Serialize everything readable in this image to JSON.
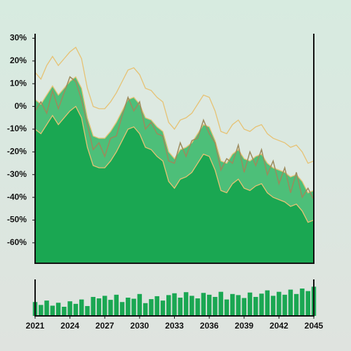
{
  "chart_data": [
    {
      "type": "area_band",
      "x": [
        2021,
        2021.5,
        2022,
        2022.5,
        2023,
        2023.5,
        2024,
        2024.5,
        2025,
        2025.5,
        2026,
        2026.5,
        2027,
        2027.5,
        2028,
        2028.5,
        2029,
        2029.5,
        2030,
        2030.5,
        2031,
        2031.5,
        2032,
        2032.5,
        2033,
        2033.5,
        2034,
        2034.5,
        2035,
        2035.5,
        2036,
        2036.5,
        2037,
        2037.5,
        2038,
        2038.5,
        2039,
        2039.5,
        2040,
        2040.5,
        2041,
        2041.5,
        2042,
        2042.5,
        2043,
        2043.5,
        2044,
        2044.5,
        2045
      ],
      "xlim": [
        2021,
        2045
      ],
      "ylim": [
        -69,
        32
      ],
      "yticks": [
        {
          "value": 30,
          "label": "30%"
        },
        {
          "value": 20,
          "label": "20%"
        },
        {
          "value": 10,
          "label": "10%"
        },
        {
          "value": 0,
          "label": "0%"
        },
        {
          "value": -10,
          "label": "-10%"
        },
        {
          "value": -20,
          "label": "-20%"
        },
        {
          "value": -30,
          "label": "-30%"
        },
        {
          "value": -40,
          "label": "-40%"
        },
        {
          "value": -50,
          "label": "-50%"
        },
        {
          "value": -60,
          "label": "-60%"
        }
      ],
      "series": [
        {
          "color": "#dde9e1",
          "line": "#e6c274",
          "values": [
            15,
            12,
            18,
            22,
            18,
            21,
            24,
            26,
            21,
            8,
            0,
            -1,
            -1,
            2,
            6,
            11,
            16,
            17,
            14,
            8,
            7,
            4,
            2,
            -7,
            -10,
            -6,
            -5,
            -3,
            1,
            5,
            4,
            -2,
            -11,
            -12,
            -8,
            -6,
            -10,
            -11,
            -9,
            -8,
            -12,
            -14,
            -15,
            -16,
            -18,
            -17,
            -20,
            -25,
            -24
          ]
        },
        {
          "color": "#4dbf79",
          "line": "#e6c274",
          "values": [
            3,
            1,
            5,
            9,
            5,
            8,
            11,
            13,
            8,
            -5,
            -13,
            -14,
            -14,
            -11,
            -7,
            -2,
            3,
            4,
            1,
            -5,
            -6,
            -9,
            -11,
            -20,
            -23,
            -19,
            -18,
            -16,
            -12,
            -8,
            -9,
            -15,
            -24,
            -25,
            -21,
            -19,
            -23,
            -24,
            -22,
            -21,
            -25,
            -27,
            -28,
            -29,
            -31,
            -30,
            -33,
            -38,
            -37
          ]
        },
        {
          "color": "#1aa752",
          "line": "#e6c274",
          "values": [
            -10,
            -12,
            -8,
            -4,
            -8,
            -5,
            -2,
            0,
            -5,
            -18,
            -26,
            -27,
            -27,
            -24,
            -20,
            -15,
            -10,
            -9,
            -12,
            -18,
            -19,
            -22,
            -24,
            -33,
            -36,
            -32,
            -31,
            -29,
            -25,
            -21,
            -22,
            -28,
            -37,
            -38,
            -34,
            -32,
            -36,
            -37,
            -35,
            -34,
            -38,
            -40,
            -41,
            -42,
            -44,
            -43,
            -46,
            -51,
            -50
          ]
        },
        {
          "color": "#9c8a5c",
          "values": [
            -2,
            2,
            -3,
            7,
            -1,
            6,
            13,
            11,
            3,
            -8,
            -19,
            -16,
            -22,
            -14,
            -13,
            -4,
            4,
            -2,
            2,
            -10,
            -7,
            -12,
            -13,
            -24,
            -25,
            -16,
            -22,
            -15,
            -14,
            -6,
            -12,
            -16,
            -28,
            -23,
            -25,
            -17,
            -29,
            -20,
            -26,
            -19,
            -30,
            -24,
            -34,
            -27,
            -38,
            -29,
            -40,
            -36,
            -41
          ]
        }
      ]
    },
    {
      "type": "bar",
      "x": [
        2021,
        2021.5,
        2022,
        2022.5,
        2023,
        2023.5,
        2024,
        2024.5,
        2025,
        2025.5,
        2026,
        2026.5,
        2027,
        2027.5,
        2028,
        2028.5,
        2029,
        2029.5,
        2030,
        2030.5,
        2031,
        2031.5,
        2032,
        2032.5,
        2033,
        2033.5,
        2034,
        2034.5,
        2035,
        2035.5,
        2036,
        2036.5,
        2037,
        2037.5,
        2038,
        2038.5,
        2039,
        2039.5,
        2040,
        2040.5,
        2041,
        2041.5,
        2042,
        2042.5,
        2043,
        2043.5,
        2044,
        2044.5,
        2045
      ],
      "xlim": [
        2021,
        2045
      ],
      "xticks": [
        2021,
        2024,
        2027,
        2030,
        2033,
        2036,
        2039,
        2042,
        2045
      ],
      "ylim": [
        0,
        100
      ],
      "color": "#1aa752",
      "values": [
        38,
        30,
        42,
        28,
        36,
        25,
        40,
        33,
        45,
        27,
        52,
        48,
        55,
        44,
        58,
        38,
        50,
        47,
        60,
        35,
        46,
        54,
        42,
        57,
        62,
        50,
        65,
        55,
        48,
        63,
        58,
        52,
        66,
        45,
        60,
        57,
        49,
        64,
        52,
        61,
        70,
        55,
        66,
        58,
        72,
        60,
        75,
        68,
        80
      ]
    }
  ]
}
